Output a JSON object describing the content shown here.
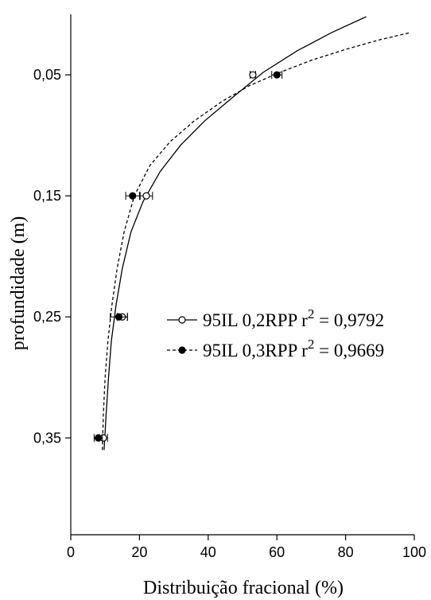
{
  "chart_data": {
    "type": "scatter",
    "xlabel": "Distribuição fracional (%)",
    "ylabel": "profundidade (m)",
    "xlim": [
      0,
      100
    ],
    "ylim": [
      0.43,
      0.0
    ],
    "y_inverted": true,
    "x_ticks": [
      "0",
      "20",
      "40",
      "60",
      "80",
      "100"
    ],
    "x_tick_values": [
      0,
      20,
      40,
      60,
      80,
      100
    ],
    "y_ticks": [
      "0,05",
      "0,15",
      "0,25",
      "0,35"
    ],
    "y_tick_values": [
      0.05,
      0.15,
      0.25,
      0.35
    ],
    "legend_position": "center-right",
    "series": [
      {
        "name": "95IL 0,2RPP",
        "r2_label": "r",
        "r2_sup": "2",
        "r2_value": " = 0,9792",
        "marker": "open-circle",
        "line": "solid",
        "color": "#000000",
        "points": [
          {
            "x": 53,
            "y": 0.05,
            "err": 0.8
          },
          {
            "x": 22,
            "y": 0.15,
            "err": 1.8
          },
          {
            "x": 15,
            "y": 0.25,
            "err": 1.5
          },
          {
            "x": 9.5,
            "y": 0.35,
            "err": 1.2
          }
        ],
        "fit": [
          [
            9.7,
            0.36
          ],
          [
            10.3,
            0.33
          ],
          [
            11.0,
            0.3
          ],
          [
            11.8,
            0.27
          ],
          [
            13.2,
            0.24
          ],
          [
            15.0,
            0.21
          ],
          [
            17.5,
            0.18
          ],
          [
            21.0,
            0.155
          ],
          [
            26.0,
            0.13
          ],
          [
            32.0,
            0.108
          ],
          [
            39.0,
            0.088
          ],
          [
            47.0,
            0.069
          ],
          [
            56.0,
            0.048
          ],
          [
            66.0,
            0.03
          ],
          [
            76.0,
            0.015
          ],
          [
            86.0,
            0.002
          ]
        ]
      },
      {
        "name": "95IL 0,3RPP",
        "r2_label": "r",
        "r2_sup": "2",
        "r2_value": " = 0,9669",
        "marker": "filled-circle",
        "line": "dashed",
        "color": "#000000",
        "points": [
          {
            "x": 60,
            "y": 0.05,
            "err": 1.5
          },
          {
            "x": 18,
            "y": 0.15,
            "err": 2.0
          },
          {
            "x": 14,
            "y": 0.25,
            "err": 2.5
          },
          {
            "x": 8,
            "y": 0.35,
            "err": 1.2
          }
        ],
        "fit": [
          [
            9.2,
            0.36
          ],
          [
            9.5,
            0.33
          ],
          [
            10.0,
            0.3
          ],
          [
            10.8,
            0.27
          ],
          [
            12.0,
            0.24
          ],
          [
            13.5,
            0.21
          ],
          [
            15.5,
            0.18
          ],
          [
            18.5,
            0.15
          ],
          [
            23.0,
            0.125
          ],
          [
            29.0,
            0.105
          ],
          [
            36.0,
            0.088
          ],
          [
            44.0,
            0.072
          ],
          [
            52.0,
            0.059
          ],
          [
            60.0,
            0.049
          ],
          [
            70.0,
            0.038
          ],
          [
            80.0,
            0.029
          ],
          [
            90.0,
            0.021
          ],
          [
            99.0,
            0.015
          ]
        ]
      }
    ]
  }
}
